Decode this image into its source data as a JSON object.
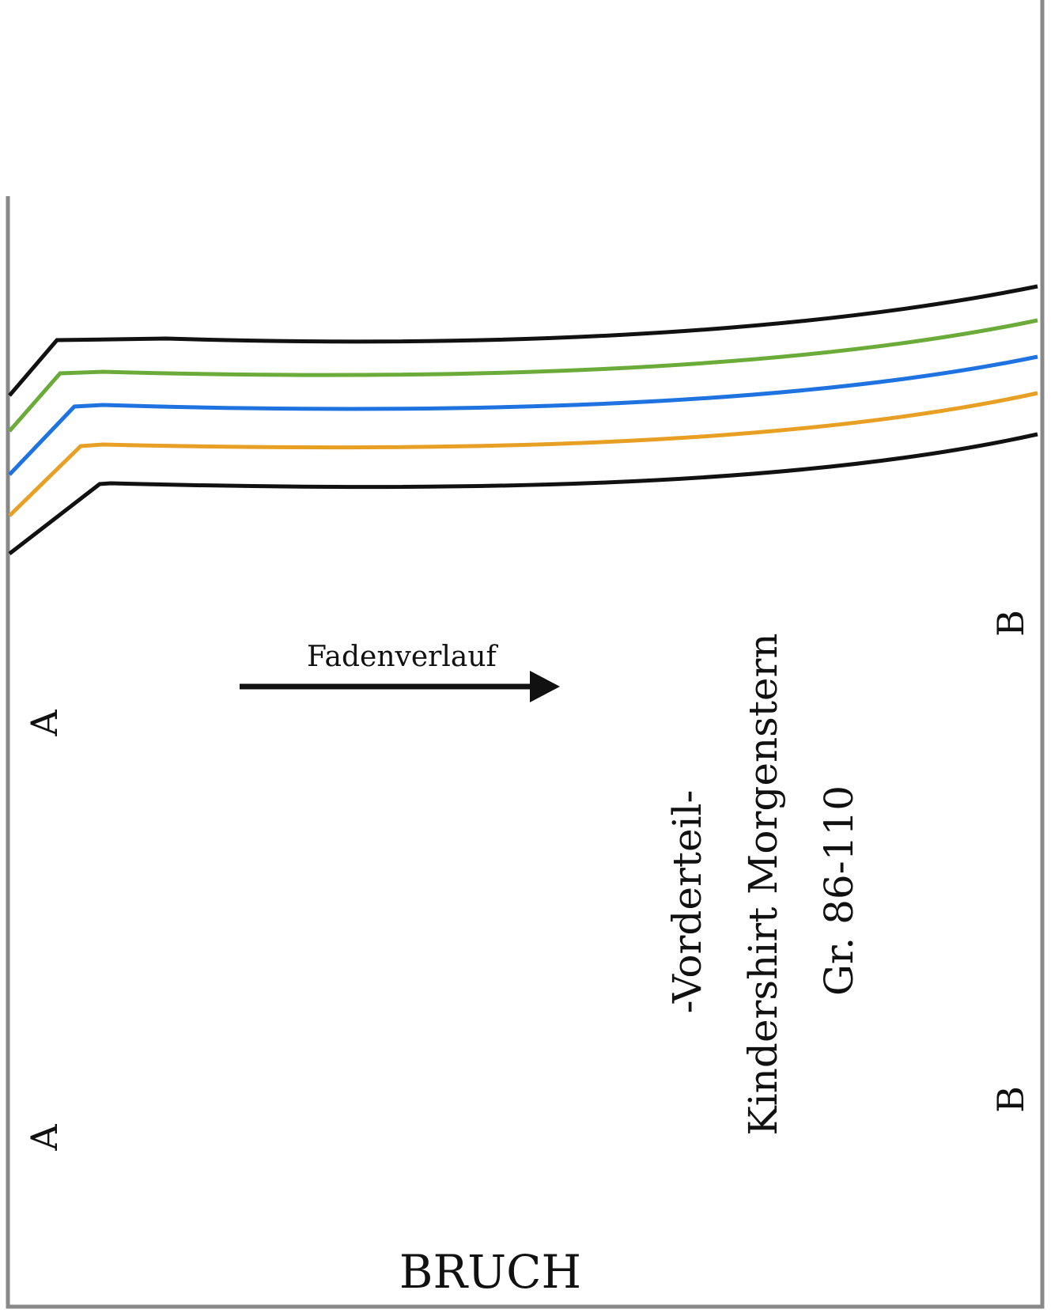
{
  "pattern": {
    "grain_label": "Fadenverlauf",
    "marker_a": "A",
    "marker_b": "B",
    "fold_label": "BRUCH",
    "title_line1": "-Vorderteil-",
    "title_line2": "Kindershirt Morgenstern",
    "title_line3": "Gr. 86-110",
    "size_line_colors": [
      "#111111",
      "#6aab3a",
      "#1f73e0",
      "#e8a024",
      "#111111"
    ],
    "border_color": "#888888"
  }
}
